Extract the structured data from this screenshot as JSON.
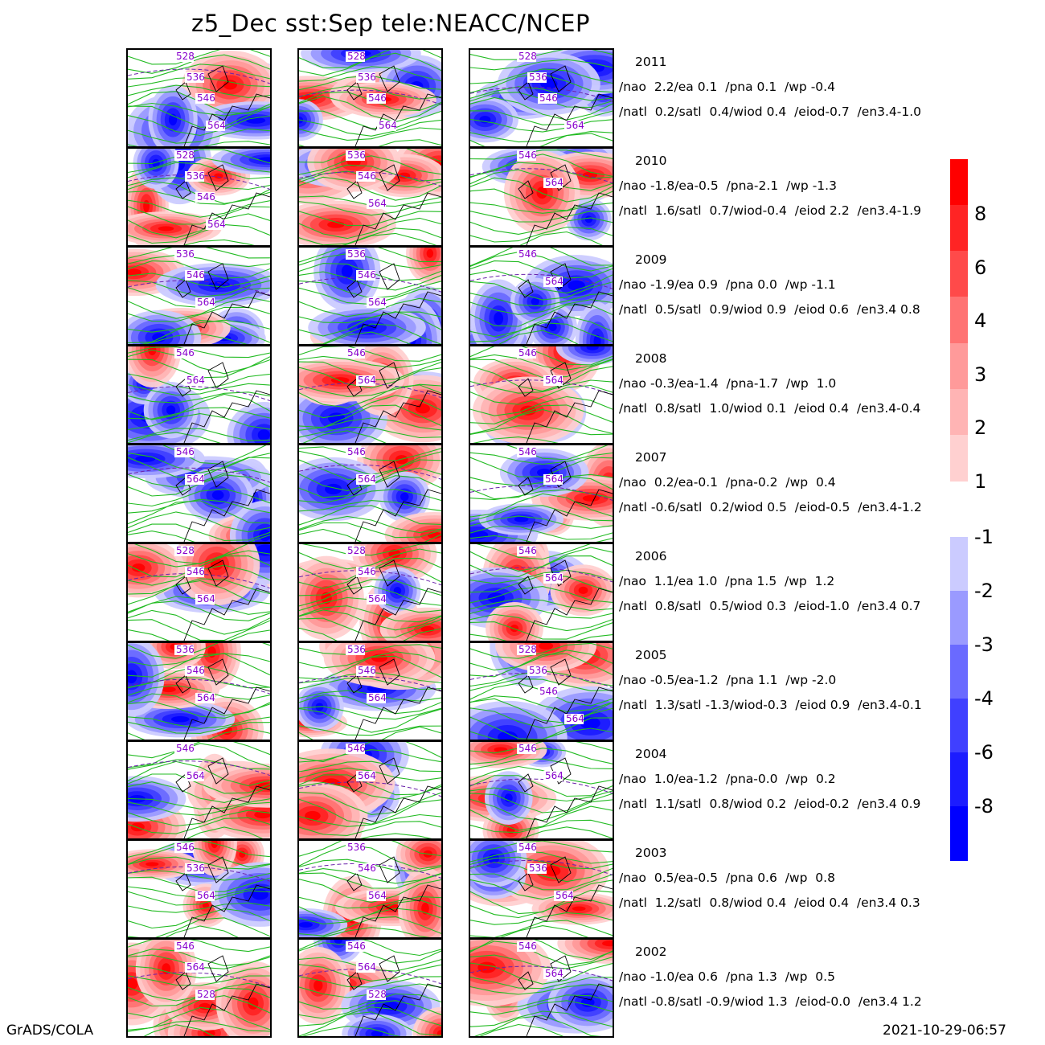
{
  "title": "z5_Dec  sst:Sep  tele:NEACC/NCEP",
  "footer_left": "GrADS/COLA",
  "footer_right": "2021-10-29-06:57",
  "colors": {
    "pos": [
      "#ffd0d0",
      "#ffb4b4",
      "#ff9a9a",
      "#ff7373",
      "#ff4a4a",
      "#ff2424",
      "#ff0000"
    ],
    "neg": [
      "#cbcbff",
      "#9a9aff",
      "#6a6aff",
      "#4040ff",
      "#1c1cff",
      "#0000ff"
    ],
    "contour": "#22bb22",
    "contour_label": "#8800cc",
    "dashed": "#6a22aa"
  },
  "colorbar": {
    "positive_labels": [
      "8",
      "6",
      "4",
      "3",
      "2",
      "1"
    ],
    "negative_labels": [
      "-1",
      "-2",
      "-3",
      "-4",
      "-6",
      "-8"
    ]
  },
  "chart_data": {
    "type": "heatmap",
    "title": "z5_Dec  sst:Sep  tele:NEACC/NCEP",
    "rows": [
      {
        "year": "2011",
        "line1": "/nao  2.2/ea 0.1  /pna 0.1  /wp -0.4",
        "line2": "/natl  0.2/satl  0.4/wiod 0.4  /eiod-0.7  /en3.4-1.0",
        "contour_labels": [
          [
            "528",
            "536",
            "546",
            "564"
          ],
          [
            "528",
            "536",
            "546",
            "564"
          ],
          [
            "528",
            "536",
            "546",
            "564"
          ]
        ]
      },
      {
        "year": "2010",
        "line1": "/nao -1.8/ea-0.5  /pna-2.1  /wp -1.3",
        "line2": "/natl  1.6/satl  0.7/wiod-0.4  /eiod 2.2  /en3.4-1.9",
        "contour_labels": [
          [
            "528",
            "536",
            "546",
            "564"
          ],
          [
            "536",
            "546",
            "564"
          ],
          [
            "546",
            "564"
          ]
        ]
      },
      {
        "year": "2009",
        "line1": "/nao -1.9/ea 0.9  /pna 0.0  /wp -1.1",
        "line2": "/natl  0.5/satl  0.9/wiod 0.9  /eiod 0.6  /en3.4 0.8",
        "contour_labels": [
          [
            "536",
            "546",
            "564"
          ],
          [
            "536",
            "546",
            "564"
          ],
          [
            "546",
            "564"
          ]
        ]
      },
      {
        "year": "2008",
        "line1": "/nao -0.3/ea-1.4  /pna-1.7  /wp  1.0",
        "line2": "/natl  0.8/satl  1.0/wiod 0.1  /eiod 0.4  /en3.4-0.4",
        "contour_labels": [
          [
            "546",
            "564"
          ],
          [
            "546",
            "564"
          ],
          [
            "546",
            "564"
          ]
        ]
      },
      {
        "year": "2007",
        "line1": "/nao  0.2/ea-0.1  /pna-0.2  /wp  0.4",
        "line2": "/natl -0.6/satl  0.2/wiod 0.5  /eiod-0.5  /en3.4-1.2",
        "contour_labels": [
          [
            "546",
            "564"
          ],
          [
            "546",
            "564"
          ],
          [
            "546",
            "564"
          ]
        ]
      },
      {
        "year": "2006",
        "line1": "/nao  1.1/ea 1.0  /pna 1.5  /wp  1.2",
        "line2": "/natl  0.8/satl  0.5/wiod 0.3  /eiod-1.0  /en3.4 0.7",
        "contour_labels": [
          [
            "528",
            "546",
            "564"
          ],
          [
            "528",
            "546",
            "564"
          ],
          [
            "546",
            "564"
          ]
        ]
      },
      {
        "year": "2005",
        "line1": "/nao -0.5/ea-1.2  /pna 1.1  /wp -2.0",
        "line2": "/natl  1.3/satl -1.3/wiod-0.3  /eiod 0.9  /en3.4-0.1",
        "contour_labels": [
          [
            "536",
            "546",
            "564"
          ],
          [
            "536",
            "546",
            "564"
          ],
          [
            "528",
            "536",
            "546",
            "564"
          ]
        ]
      },
      {
        "year": "2004",
        "line1": "/nao  1.0/ea-1.2  /pna-0.0  /wp  0.2",
        "line2": "/natl  1.1/satl  0.8/wiod 0.2  /eiod-0.2  /en3.4 0.9",
        "contour_labels": [
          [
            "546",
            "564"
          ],
          [
            "546",
            "564"
          ],
          [
            "546",
            "564"
          ]
        ]
      },
      {
        "year": "2003",
        "line1": "/nao  0.5/ea-0.5  /pna 0.6  /wp  0.8",
        "line2": "/natl  1.2/satl  0.8/wiod 0.4  /eiod 0.4  /en3.4 0.3",
        "contour_labels": [
          [
            "546",
            "536",
            "564"
          ],
          [
            "536",
            "546",
            "564"
          ],
          [
            "546",
            "536",
            "564"
          ]
        ]
      },
      {
        "year": "2002",
        "line1": "/nao -1.0/ea 0.6  /pna 1.3  /wp  0.5",
        "line2": "/natl -0.8/satl -0.9/wiod 1.3  /eiod-0.0  /en3.4 1.2",
        "contour_labels": [
          [
            "546",
            "564",
            "528"
          ],
          [
            "546",
            "564",
            "528"
          ],
          [
            "546",
            "564"
          ]
        ]
      }
    ],
    "colorbar_levels": [
      -8,
      -6,
      -4,
      -3,
      -2,
      -1,
      1,
      2,
      3,
      4,
      6,
      8
    ]
  }
}
